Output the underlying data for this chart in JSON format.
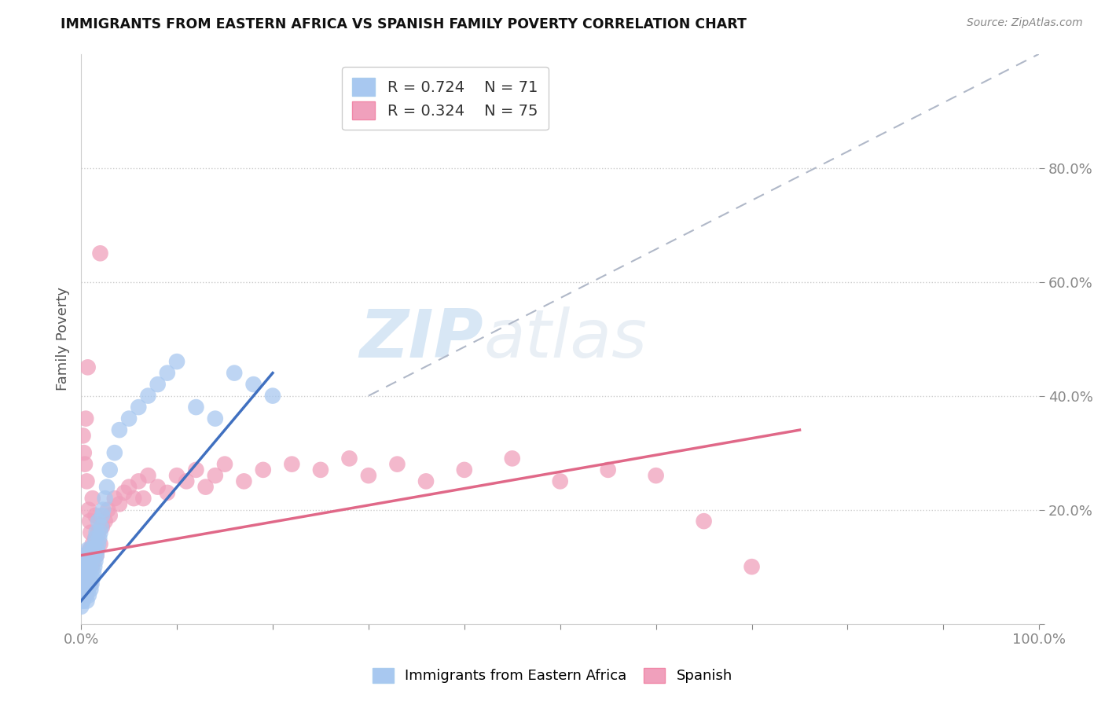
{
  "title": "IMMIGRANTS FROM EASTERN AFRICA VS SPANISH FAMILY POVERTY CORRELATION CHART",
  "source": "Source: ZipAtlas.com",
  "ylabel": "Family Poverty",
  "xlim": [
    0,
    1.0
  ],
  "ylim": [
    0,
    1.0
  ],
  "blue_R": 0.724,
  "blue_N": 71,
  "pink_R": 0.324,
  "pink_N": 75,
  "blue_color": "#a8c8f0",
  "pink_color": "#f0a0bc",
  "blue_line_color": "#4070c0",
  "pink_line_color": "#e06888",
  "legend_blue_label": "Immigrants from Eastern Africa",
  "legend_pink_label": "Spanish",
  "watermark_zip": "ZIP",
  "watermark_atlas": "atlas",
  "blue_scatter_x": [
    0.0,
    0.0,
    0.001,
    0.001,
    0.002,
    0.002,
    0.002,
    0.003,
    0.003,
    0.004,
    0.004,
    0.004,
    0.005,
    0.005,
    0.005,
    0.006,
    0.006,
    0.006,
    0.007,
    0.007,
    0.007,
    0.008,
    0.008,
    0.008,
    0.009,
    0.009,
    0.01,
    0.01,
    0.01,
    0.011,
    0.011,
    0.012,
    0.012,
    0.013,
    0.013,
    0.014,
    0.014,
    0.015,
    0.015,
    0.016,
    0.016,
    0.017,
    0.018,
    0.018,
    0.019,
    0.02,
    0.021,
    0.022,
    0.023,
    0.025,
    0.027,
    0.03,
    0.035,
    0.04,
    0.05,
    0.06,
    0.07,
    0.08,
    0.09,
    0.1,
    0.12,
    0.14,
    0.16,
    0.18,
    0.2,
    0.0,
    0.001,
    0.002,
    0.003,
    0.004,
    0.005
  ],
  "blue_scatter_y": [
    0.06,
    0.09,
    0.05,
    0.08,
    0.04,
    0.07,
    0.1,
    0.05,
    0.09,
    0.06,
    0.08,
    0.12,
    0.05,
    0.08,
    0.11,
    0.04,
    0.07,
    0.1,
    0.06,
    0.09,
    0.13,
    0.05,
    0.08,
    0.11,
    0.07,
    0.1,
    0.06,
    0.09,
    0.13,
    0.07,
    0.11,
    0.08,
    0.12,
    0.09,
    0.13,
    0.1,
    0.14,
    0.11,
    0.15,
    0.12,
    0.16,
    0.13,
    0.14,
    0.18,
    0.15,
    0.16,
    0.17,
    0.19,
    0.2,
    0.22,
    0.24,
    0.27,
    0.3,
    0.34,
    0.36,
    0.38,
    0.4,
    0.42,
    0.44,
    0.46,
    0.38,
    0.36,
    0.44,
    0.42,
    0.4,
    0.03,
    0.04,
    0.05,
    0.06,
    0.07,
    0.08
  ],
  "pink_scatter_x": [
    0.0,
    0.0,
    0.001,
    0.001,
    0.002,
    0.002,
    0.003,
    0.003,
    0.004,
    0.004,
    0.005,
    0.005,
    0.006,
    0.006,
    0.007,
    0.007,
    0.008,
    0.009,
    0.01,
    0.01,
    0.011,
    0.012,
    0.013,
    0.014,
    0.015,
    0.016,
    0.018,
    0.02,
    0.022,
    0.025,
    0.028,
    0.03,
    0.035,
    0.04,
    0.045,
    0.05,
    0.055,
    0.06,
    0.065,
    0.07,
    0.08,
    0.09,
    0.1,
    0.11,
    0.12,
    0.13,
    0.14,
    0.15,
    0.17,
    0.19,
    0.22,
    0.25,
    0.28,
    0.3,
    0.33,
    0.36,
    0.4,
    0.45,
    0.5,
    0.55,
    0.6,
    0.65,
    0.7,
    0.002,
    0.003,
    0.004,
    0.005,
    0.006,
    0.007,
    0.008,
    0.009,
    0.01,
    0.012,
    0.015,
    0.02
  ],
  "pink_scatter_y": [
    0.06,
    0.08,
    0.05,
    0.09,
    0.07,
    0.11,
    0.06,
    0.1,
    0.08,
    0.12,
    0.05,
    0.09,
    0.07,
    0.12,
    0.08,
    0.11,
    0.1,
    0.13,
    0.07,
    0.12,
    0.1,
    0.14,
    0.11,
    0.13,
    0.15,
    0.12,
    0.16,
    0.14,
    0.17,
    0.18,
    0.2,
    0.19,
    0.22,
    0.21,
    0.23,
    0.24,
    0.22,
    0.25,
    0.22,
    0.26,
    0.24,
    0.23,
    0.26,
    0.25,
    0.27,
    0.24,
    0.26,
    0.28,
    0.25,
    0.27,
    0.28,
    0.27,
    0.29,
    0.26,
    0.28,
    0.25,
    0.27,
    0.29,
    0.25,
    0.27,
    0.26,
    0.18,
    0.1,
    0.33,
    0.3,
    0.28,
    0.36,
    0.25,
    0.45,
    0.2,
    0.18,
    0.16,
    0.22,
    0.19,
    0.65
  ],
  "blue_line_x": [
    0.0,
    0.2
  ],
  "blue_line_y": [
    0.04,
    0.44
  ],
  "pink_line_x": [
    0.0,
    0.75
  ],
  "pink_line_y": [
    0.12,
    0.34
  ],
  "dash_line_x": [
    0.3,
    1.0
  ],
  "dash_line_y": [
    0.4,
    1.0
  ]
}
